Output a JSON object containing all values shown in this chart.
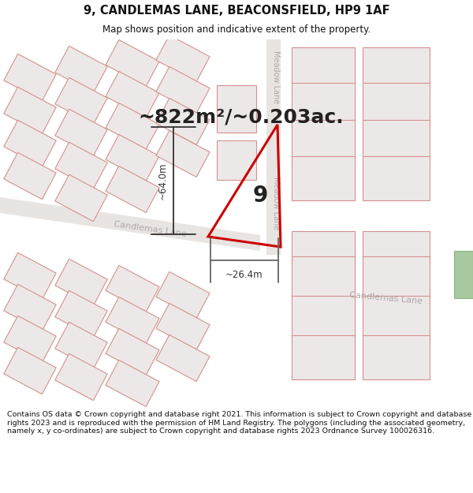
{
  "title_line1": "9, CANDLEMAS LANE, BEACONSFIELD, HP9 1AF",
  "title_line2": "Map shows position and indicative extent of the property.",
  "area_text": "~822m²/~0.203ac.",
  "property_number": "9",
  "dim_vertical": "~64.0m",
  "dim_horizontal": "~26.4m",
  "street_candlemas1": "Candlemas Lane",
  "street_candlemas2": "Candlemas Lane",
  "street_meadow1": "Meadow Lane",
  "street_meadow2": "Meadow Lane",
  "footer_text": "Contains OS data © Crown copyright and database right 2021. This information is subject to Crown copyright and database rights 2023 and is reproduced with the permission of HM Land Registry. The polygons (including the associated geometry, namely x, y co-ordinates) are subject to Crown copyright and database rights 2023 Ordnance Survey 100026316.",
  "bg_color": "#ffffff",
  "map_bg": "#f2efee",
  "building_edge": "#d4918e",
  "building_fill": "#ede8e8",
  "road_fill": "#e8e4e2",
  "property_color": "#cc0000",
  "dim_color": "#333333",
  "title_color": "#111111",
  "street_color": "#b0a8a8",
  "footer_bg": "#ffffff",
  "footer_color": "#111111",
  "green_fill": "#a8c8a0"
}
